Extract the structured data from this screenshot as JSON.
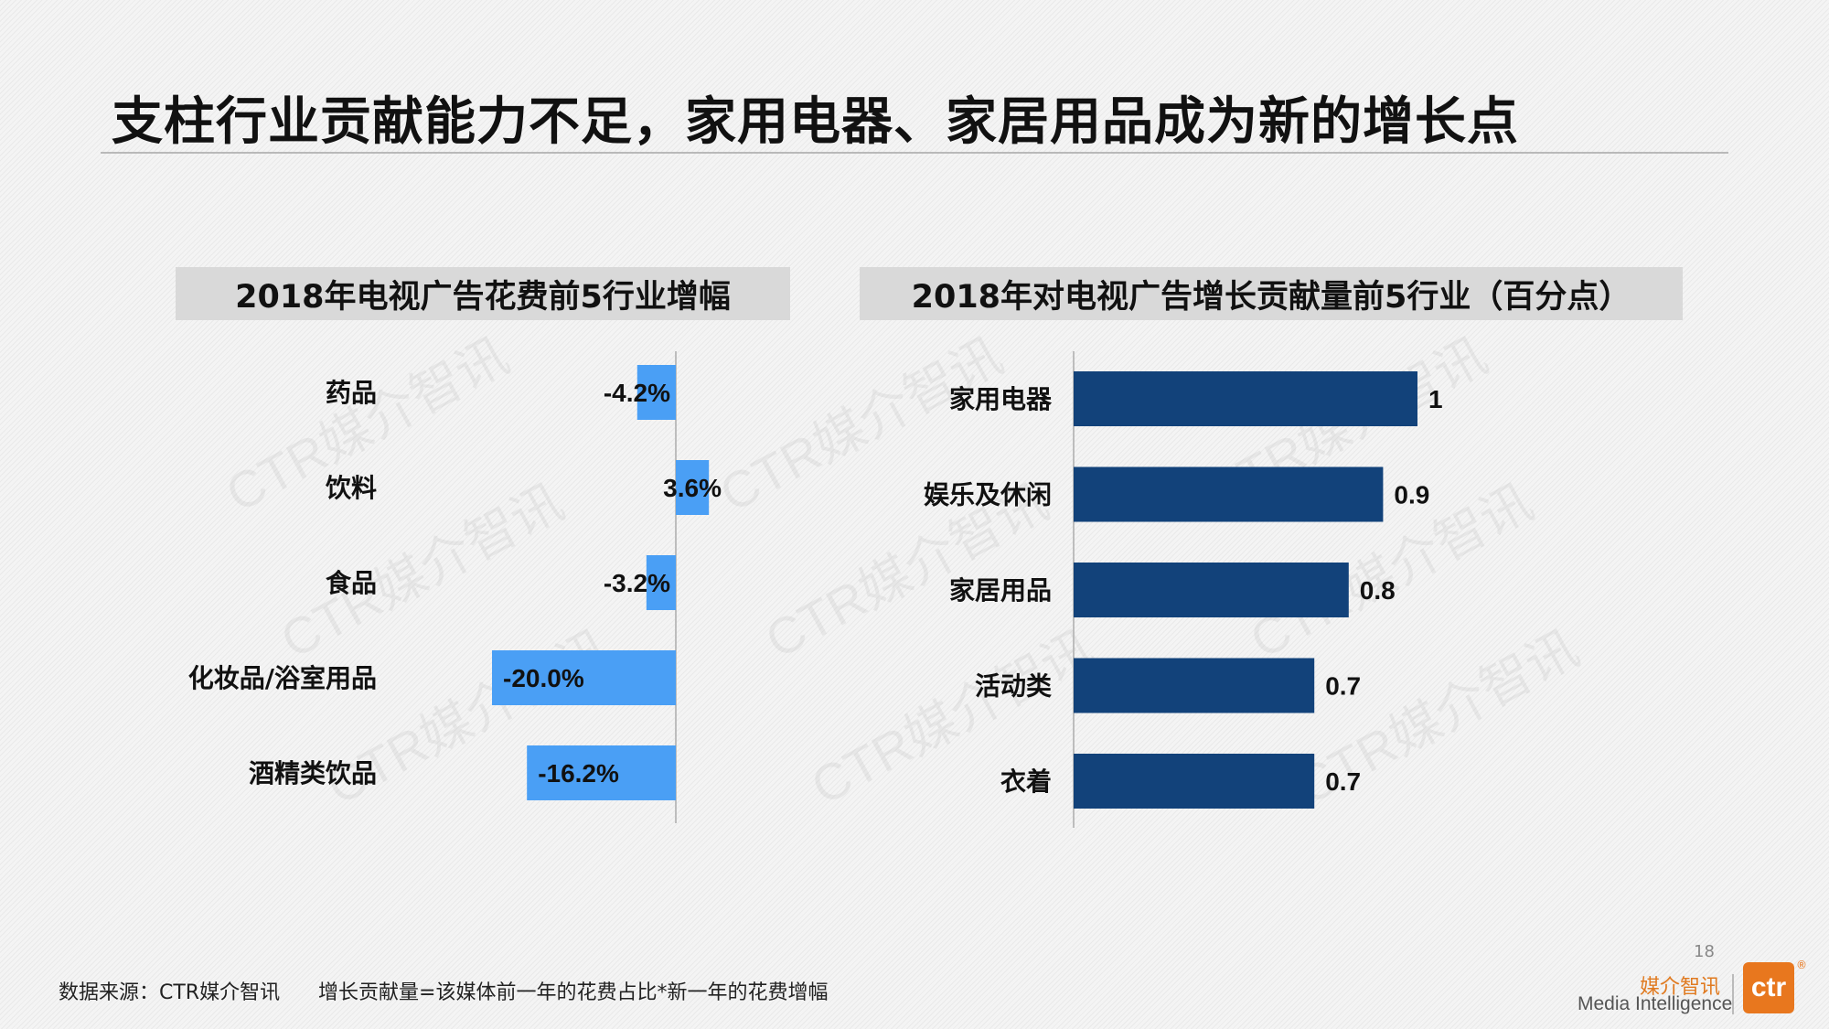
{
  "title": "支柱行业贡献能力不足，家用电器、家居用品成为新的增长点",
  "watermark_text": "CTR媒介智讯",
  "chart_data": [
    {
      "type": "bar",
      "orientation": "horizontal",
      "title": "2018年电视广告花费前5行业增幅",
      "categories": [
        "药品",
        "饮料",
        "食品",
        "化妆品/浴室用品",
        "酒精类饮品"
      ],
      "values": [
        -4.2,
        3.6,
        -3.2,
        -20.0,
        -16.2
      ],
      "value_labels": [
        "-4.2%",
        "3.6%",
        "-3.2%",
        "-20.0%",
        "-16.2%"
      ],
      "unit": "%",
      "xlim": [
        -20.0,
        8.2
      ],
      "color": "#4a9ff5",
      "grid": false,
      "legend": "none"
    },
    {
      "type": "bar",
      "orientation": "horizontal",
      "title": "2018年对电视广告增长贡献量前5行业（百分点）",
      "categories": [
        "家用电器",
        "娱乐及休闲",
        "家居用品",
        "活动类",
        "衣着"
      ],
      "values": [
        1,
        0.9,
        0.8,
        0.7,
        0.7
      ],
      "value_labels": [
        "1",
        "0.9",
        "0.8",
        "0.7",
        "0.7"
      ],
      "xlim": [
        0,
        1
      ],
      "color": "#12427a",
      "grid": false,
      "legend": "none"
    }
  ],
  "footer": {
    "note": "数据来源：CTR媒介智讯      增长贡献量=该媒体前一年的花费占比*新一年的花费增幅",
    "page_number": "18"
  },
  "logo": {
    "cn": "媒介智讯",
    "en": "Media Intelligence",
    "mark": "ctr",
    "reg": "®"
  },
  "colors": {
    "left_bars": "#4a9ff5",
    "right_bars": "#12427a",
    "header_bg": "#d9d9d9",
    "logo_orange": "#e8771e"
  }
}
